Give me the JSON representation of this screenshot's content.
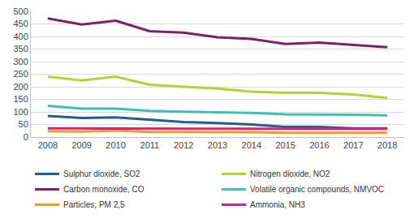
{
  "chart_data": {
    "type": "line",
    "categories": [
      "2008",
      "2009",
      "2010",
      "2011",
      "2012",
      "2013",
      "2014",
      "2015",
      "2016",
      "2017",
      "2018"
    ],
    "series": [
      {
        "name": "Sulphur dioxide, SO2",
        "color": "#1f5f8b",
        "values": [
          84,
          76,
          78,
          70,
          60,
          56,
          50,
          40,
          40,
          35,
          35
        ]
      },
      {
        "name": "Nitrogen dioxide, NO2",
        "color": "#b4d235",
        "values": [
          240,
          225,
          240,
          208,
          200,
          193,
          181,
          176,
          176,
          169,
          156
        ]
      },
      {
        "name": "Carbon monoxide, CO",
        "color": "#7a2168",
        "values": [
          472,
          448,
          463,
          421,
          415,
          397,
          390,
          370,
          376,
          367,
          357
        ]
      },
      {
        "name": "Volatile organic compounds, NMVOC",
        "color": "#3dbfb3",
        "values": [
          124,
          113,
          113,
          104,
          101,
          98,
          96,
          90,
          90,
          89,
          86
        ]
      },
      {
        "name": "Particles, PM 2,5",
        "color": "#f39a1e",
        "values": [
          23,
          22,
          26,
          20,
          20,
          20,
          19,
          17,
          17,
          17,
          17
        ]
      },
      {
        "name": "Ammonia, NH3",
        "color": "#d5247b",
        "values": [
          35,
          34,
          34,
          33,
          33,
          33,
          33,
          32,
          32,
          33,
          32
        ]
      }
    ],
    "ylim": [
      0,
      500
    ],
    "yticks": [
      0,
      50,
      100,
      150,
      200,
      250,
      300,
      350,
      400,
      450,
      500
    ],
    "grid": true,
    "legend": "bottom"
  }
}
